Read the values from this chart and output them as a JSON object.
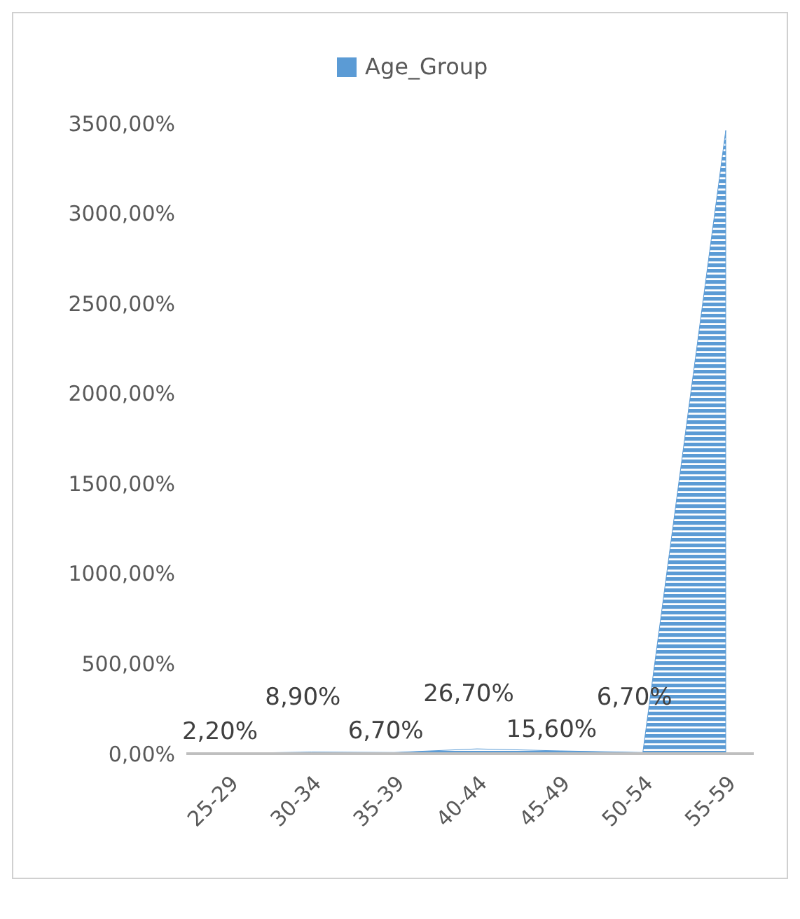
{
  "chart_data": {
    "type": "area",
    "categories": [
      "25-29",
      "30-34",
      "35-39",
      "40-44",
      "45-49",
      "50-54",
      "55-59"
    ],
    "series": [
      {
        "name": "Age_Group",
        "color": "#5b9bd5",
        "values": [
          2.2,
          8.9,
          6.7,
          26.7,
          15.6,
          6.7,
          3460
        ],
        "value_labels": [
          "2,20%",
          "8,90%",
          "6,70%",
          "26,70%",
          "15,60%",
          "6,70%",
          null
        ]
      }
    ],
    "ylim": [
      0,
      3500
    ],
    "yticks": [
      {
        "value": 0,
        "label": "0,00%"
      },
      {
        "value": 500,
        "label": "500,00%"
      },
      {
        "value": 1000,
        "label": "1000,00%"
      },
      {
        "value": 1500,
        "label": "1500,00%"
      },
      {
        "value": 2000,
        "label": "2000,00%"
      },
      {
        "value": 2500,
        "label": "2500,00%"
      },
      {
        "value": 3000,
        "label": "3000,00%"
      },
      {
        "value": 3500,
        "label": "3500,00%"
      }
    ],
    "grid": false,
    "legend": "top"
  }
}
